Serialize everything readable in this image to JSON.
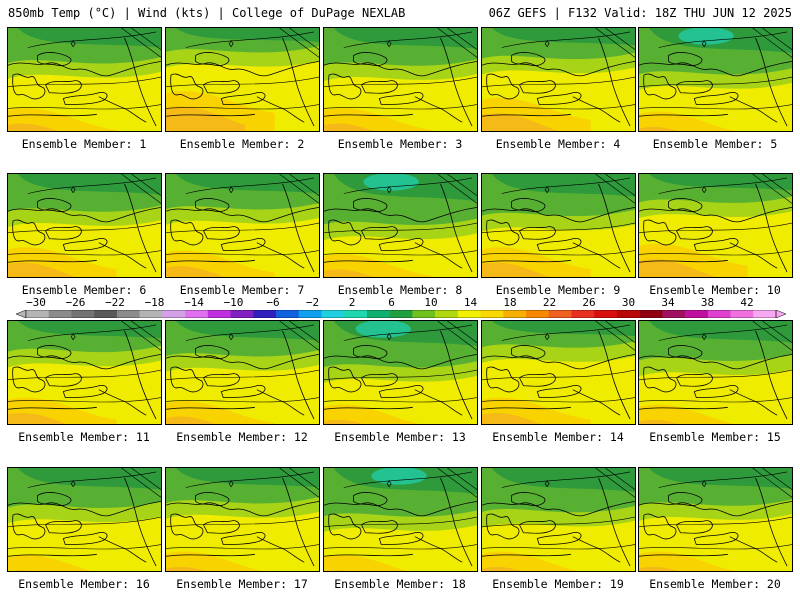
{
  "header": {
    "left_title": "850mb Temp (°C) | Wind (kts) | College of DuPage NEXLAB",
    "right_title": "06Z GEFS | F132 Valid: 18Z THU JUN 12 2025"
  },
  "panel_label_prefix": "Ensemble Member: ",
  "members": [
    {
      "label": "Ensemble Member: 1",
      "cool": 0.55,
      "warm": 0.3
    },
    {
      "label": "Ensemble Member: 2",
      "cool": 0.3,
      "warm": 0.55
    },
    {
      "label": "Ensemble Member: 3",
      "cool": 0.6,
      "warm": 0.3
    },
    {
      "label": "Ensemble Member: 4",
      "cool": 0.45,
      "warm": 0.45
    },
    {
      "label": "Ensemble Member: 5",
      "cool": 0.8,
      "warm": 0.25
    },
    {
      "label": "Ensemble Member: 6",
      "cool": 0.6,
      "warm": 0.4
    },
    {
      "label": "Ensemble Member: 7",
      "cool": 0.55,
      "warm": 0.35
    },
    {
      "label": "Ensemble Member: 8",
      "cool": 0.9,
      "warm": 0.3
    },
    {
      "label": "Ensemble Member: 9",
      "cool": 0.7,
      "warm": 0.4
    },
    {
      "label": "Ensemble Member: 10",
      "cool": 0.4,
      "warm": 0.45
    },
    {
      "label": "Ensemble Member: 11",
      "cool": 0.45,
      "warm": 0.35
    },
    {
      "label": "Ensemble Member: 12",
      "cool": 0.55,
      "warm": 0.3
    },
    {
      "label": "Ensemble Member: 13",
      "cool": 0.8,
      "warm": 0.25
    },
    {
      "label": "Ensemble Member: 14",
      "cool": 0.35,
      "warm": 0.35
    },
    {
      "label": "Ensemble Member: 15",
      "cool": 0.65,
      "warm": 0.25
    },
    {
      "label": "Ensemble Member: 16",
      "cool": 0.65,
      "warm": 0.2
    },
    {
      "label": "Ensemble Member: 17",
      "cool": 0.55,
      "warm": 0.25
    },
    {
      "label": "Ensemble Member: 18",
      "cool": 0.85,
      "warm": 0.2
    },
    {
      "label": "Ensemble Member: 19",
      "cool": 0.75,
      "warm": 0.25
    },
    {
      "label": "Ensemble Member: 20",
      "cool": 0.6,
      "warm": 0.25
    }
  ],
  "colorbar": {
    "tick_labels": [
      "-30",
      "-26",
      "-22",
      "-18",
      "-14",
      "-10",
      "-6",
      "-2",
      "2",
      "6",
      "10",
      "14",
      "18",
      "22",
      "26",
      "30",
      "34",
      "38",
      "42"
    ],
    "colors": [
      "#b4b4b4",
      "#8c8c8c",
      "#737373",
      "#5a5a5a",
      "#8c8c8c",
      "#b4b4b4",
      "#d4a0e8",
      "#e070f0",
      "#c030e0",
      "#8020c0",
      "#3020c0",
      "#1060e0",
      "#10a0f0",
      "#20d0e0",
      "#20d8b0",
      "#10b070",
      "#20a040",
      "#70c020",
      "#b0d810",
      "#f0f000",
      "#f8d800",
      "#f8b000",
      "#f88800",
      "#f06020",
      "#e83020",
      "#d81010",
      "#b80808",
      "#900010",
      "#a01060",
      "#c010a0",
      "#e040d0",
      "#f070e0",
      "#f8a8f0"
    ]
  },
  "palette": {
    "deep_green": "#2e9a3c",
    "green": "#58b032",
    "yellow_green": "#a8d418",
    "yellow": "#f0ec00",
    "gold": "#f8d000",
    "orange": "#f4b020",
    "teal": "#22c8a0",
    "border_line": "#000000"
  }
}
